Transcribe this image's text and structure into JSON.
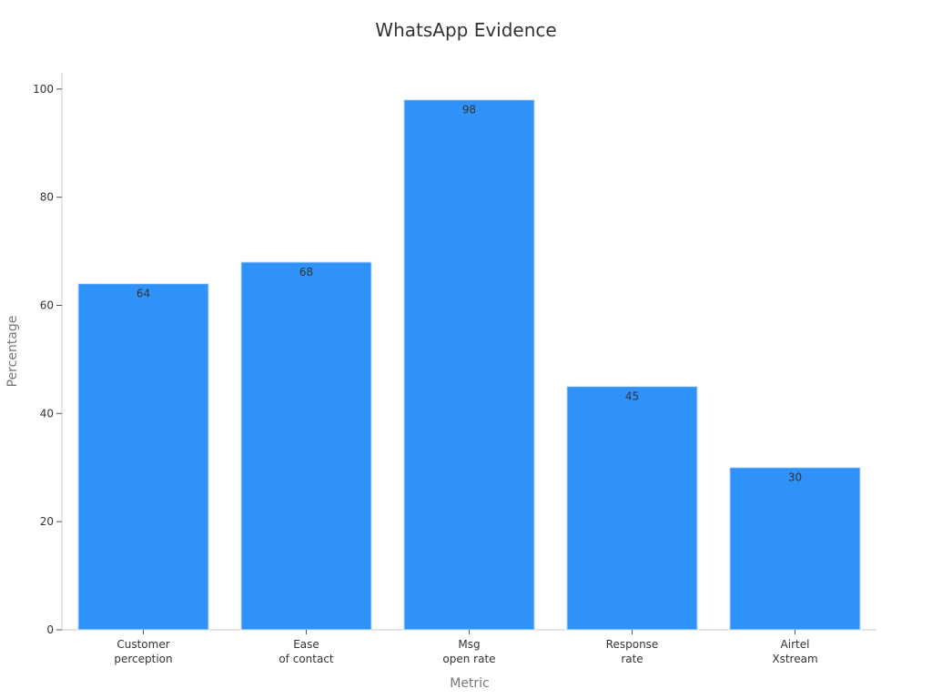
{
  "chart_data": {
    "type": "bar",
    "title": "WhatsApp Evidence",
    "xlabel": "Metric",
    "ylabel": "Percentage",
    "categories": [
      [
        "Customer",
        "perception"
      ],
      [
        "Ease",
        "of contact"
      ],
      [
        "Msg",
        "open rate"
      ],
      [
        "Response",
        "rate"
      ],
      [
        "Airtel",
        "Xstream"
      ]
    ],
    "values": [
      64,
      68,
      98,
      45,
      30
    ],
    "data_labels": [
      "64",
      "68",
      "98",
      "45",
      "30"
    ],
    "yticks": [
      0,
      20,
      40,
      60,
      80,
      100
    ],
    "ylim": [
      0,
      103
    ],
    "grid": false,
    "bar_color": "#2f92f8",
    "bar_edge_color": "#cfe2f7"
  }
}
